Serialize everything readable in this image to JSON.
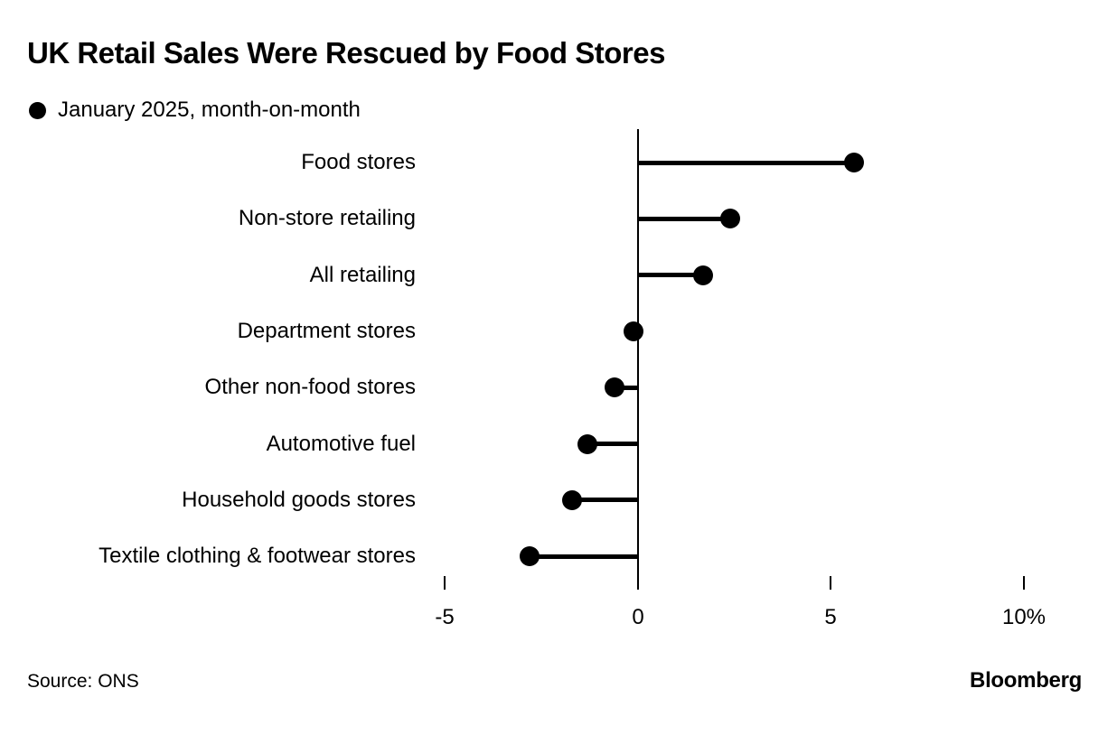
{
  "page": {
    "title": "UK Retail Sales Were Rescued by Food Stores",
    "legend_label": "January 2025, month-on-month",
    "source": "Source: ONS",
    "brand": "Bloomberg"
  },
  "colors": {
    "ink": "#000000",
    "background": "#ffffff"
  },
  "chart_data": {
    "type": "bar",
    "variant": "lollipop",
    "orientation": "horizontal",
    "title": "UK Retail Sales Were Rescued by Food Stores",
    "legend": "January 2025, month-on-month",
    "legend_position": "top-left",
    "categories": [
      "Food stores",
      "Non-store retailing",
      "All retailing",
      "Department stores",
      "Other non-food stores",
      "Automotive fuel",
      "Household goods stores",
      "Textile clothing & footwear stores"
    ],
    "values": [
      5.6,
      2.4,
      1.7,
      -0.1,
      -0.6,
      -1.3,
      -1.7,
      -2.8
    ],
    "unit": "%",
    "xlabel": "",
    "ylabel": "",
    "xlim": [
      -6,
      12
    ],
    "grid": false,
    "x_ticks": [
      {
        "value": -5,
        "label": "-5"
      },
      {
        "value": 0,
        "label": "0"
      },
      {
        "value": 5,
        "label": "5"
      },
      {
        "value": 10,
        "label": "10%"
      }
    ]
  }
}
